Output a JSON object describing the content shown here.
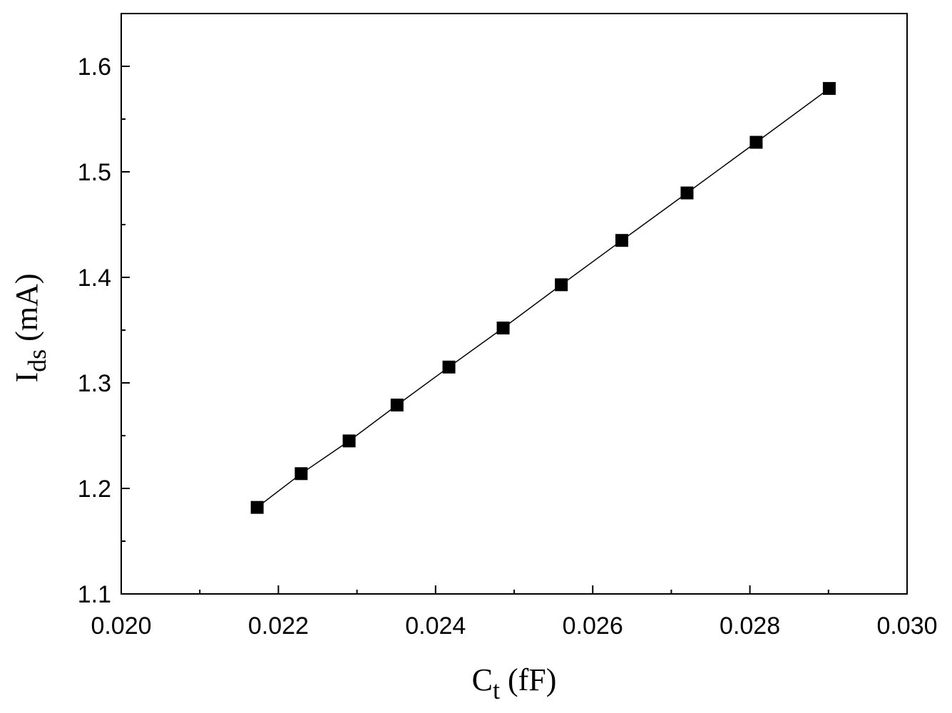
{
  "chart_data": {
    "type": "scatter",
    "title": "",
    "xlabel": {
      "main": "C",
      "sub": "t",
      "unit": " (fF)"
    },
    "ylabel": {
      "main": "I",
      "sub": "ds",
      "unit": " (mA)"
    },
    "xlim": [
      0.02,
      0.03
    ],
    "ylim": [
      1.1,
      1.65
    ],
    "x_ticks": [
      0.02,
      0.022,
      0.024,
      0.026,
      0.028,
      0.03
    ],
    "x_tick_labels": [
      "0.020",
      "0.022",
      "0.024",
      "0.026",
      "0.028",
      "0.030"
    ],
    "y_ticks": [
      1.1,
      1.2,
      1.3,
      1.4,
      1.5,
      1.6
    ],
    "y_tick_labels": [
      "1.1",
      "1.2",
      "1.3",
      "1.4",
      "1.5",
      "1.6"
    ],
    "grid": false,
    "legend": "none",
    "series": [
      {
        "marker": "square",
        "line": true,
        "color": "#000000",
        "x": [
          0.02173,
          0.02229,
          0.0229,
          0.02351,
          0.02417,
          0.02486,
          0.0256,
          0.02637,
          0.0272,
          0.02808,
          0.02901
        ],
        "y": [
          1.182,
          1.214,
          1.245,
          1.279,
          1.315,
          1.352,
          1.393,
          1.435,
          1.48,
          1.528,
          1.579
        ]
      }
    ]
  }
}
